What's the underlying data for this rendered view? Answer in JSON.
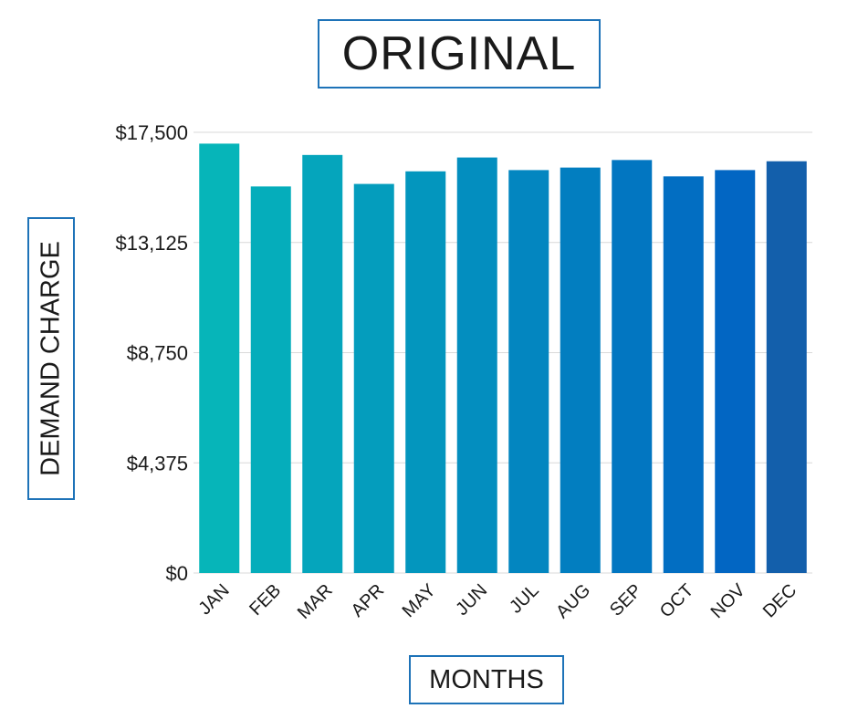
{
  "chart_data": {
    "type": "bar",
    "title": "ORIGINAL",
    "xlabel": "MONTHS",
    "ylabel": "DEMAND CHARGE",
    "categories": [
      "JAN",
      "FEB",
      "MAR",
      "APR",
      "MAY",
      "JUN",
      "JUL",
      "AUG",
      "SEP",
      "OCT",
      "NOV",
      "DEC"
    ],
    "values": [
      17050,
      15350,
      16600,
      15450,
      15950,
      16500,
      16000,
      16100,
      16400,
      15750,
      16000,
      16350
    ],
    "ylim": [
      0,
      17500
    ],
    "yticks": [
      0,
      4375,
      8750,
      13125,
      17500
    ],
    "ytick_labels": [
      "$0",
      "$4,375",
      "$8,750",
      "$13,125",
      "$17,500"
    ],
    "grid": "horizontal",
    "bar_colors": [
      "#06b5b9",
      "#05adbb",
      "#05a5bc",
      "#049dbd",
      "#0396be",
      "#038ebf",
      "#0386c0",
      "#027ec0",
      "#0276c1",
      "#026ec2",
      "#0266c3",
      "#135fab"
    ]
  }
}
